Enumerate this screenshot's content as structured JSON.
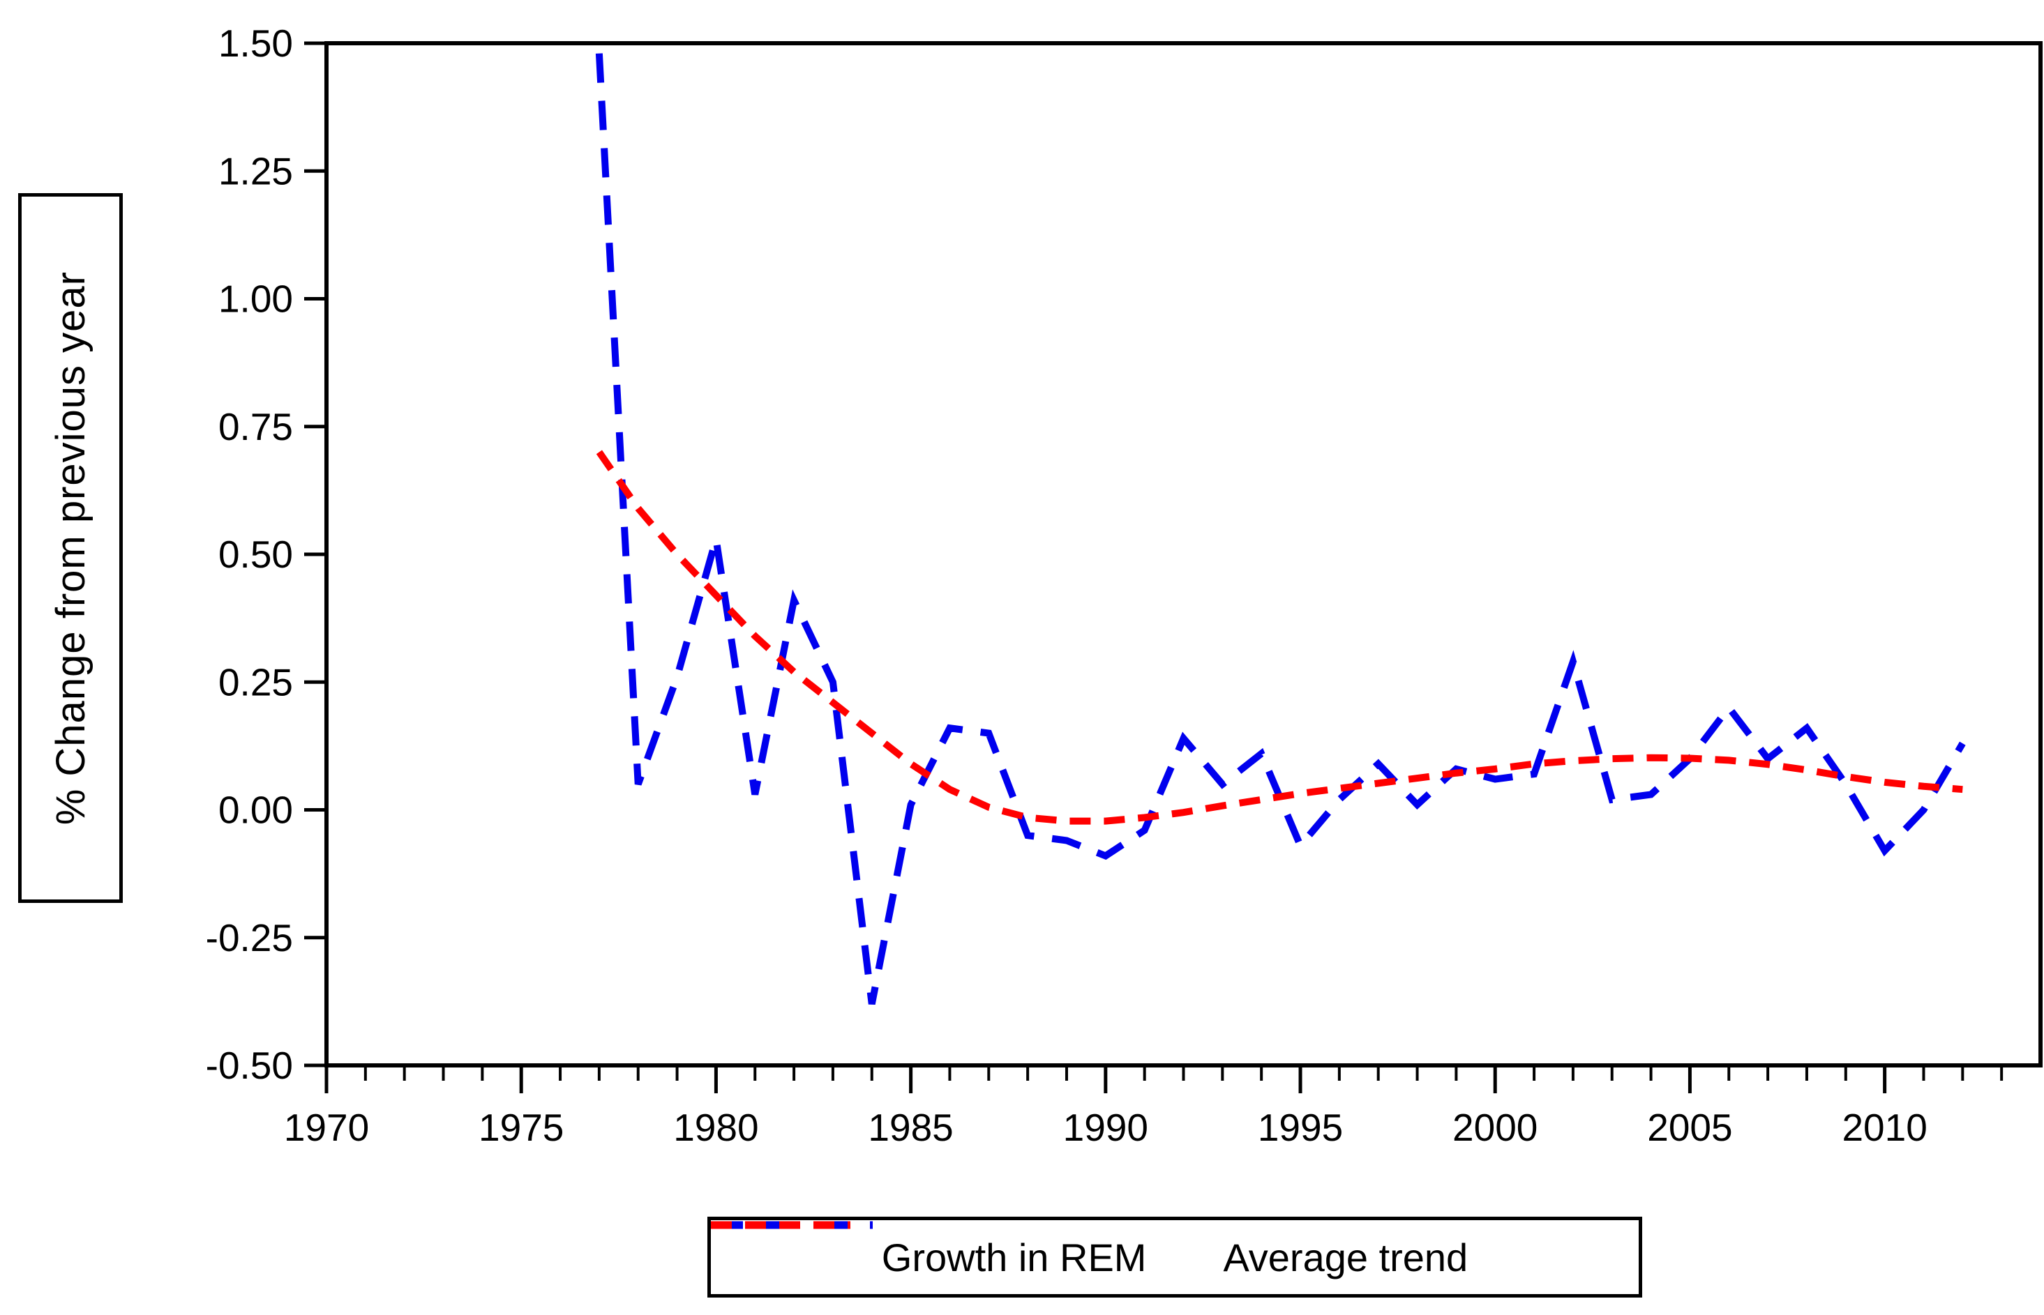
{
  "figure": {
    "background": "#ffffff",
    "axis_color": "#000000",
    "y_axis_title": "% Change from previous year"
  },
  "chart_data": {
    "type": "line",
    "title": "",
    "xlabel": "",
    "ylabel": "% Change from previous year",
    "grid": false,
    "legend_position": "bottom-center-boxed",
    "x_range": [
      1970,
      2014
    ],
    "ylim": [
      -0.5,
      1.5
    ],
    "y_ticks": [
      1.5,
      1.25,
      1.0,
      0.75,
      0.5,
      0.25,
      0.0,
      -0.25,
      -0.5
    ],
    "y_tick_labels": [
      "1.50",
      "1.25",
      "1.00",
      "0.75",
      "0.50",
      "0.25",
      "0.00",
      "-0.25",
      "-0.50"
    ],
    "x_major_ticks": [
      1970,
      1975,
      1980,
      1985,
      1990,
      1995,
      2000,
      2005,
      2010
    ],
    "x_minor_tick_step": 1,
    "x": [
      1977,
      1978,
      1979,
      1980,
      1981,
      1982,
      1983,
      1984,
      1985,
      1986,
      1987,
      1988,
      1989,
      1990,
      1991,
      1992,
      1993,
      1994,
      1995,
      1996,
      1997,
      1998,
      1999,
      2000,
      2001,
      2002,
      2003,
      2004,
      2005,
      2006,
      2007,
      2008,
      2009,
      2010,
      2011,
      2012
    ],
    "series": [
      {
        "name": "Growth in REM",
        "color": "#0000ee",
        "width": 10,
        "dash": [
          42,
          26
        ],
        "legend_dash": "46 30",
        "values": [
          1.48,
          0.05,
          0.26,
          0.53,
          0.03,
          0.41,
          0.25,
          -0.38,
          0.01,
          0.16,
          0.15,
          -0.05,
          -0.06,
          -0.09,
          -0.04,
          0.14,
          0.05,
          0.11,
          -0.07,
          0.02,
          0.09,
          0.01,
          0.08,
          0.06,
          0.07,
          0.29,
          0.02,
          0.03,
          0.1,
          0.2,
          0.1,
          0.16,
          0.05,
          -0.08,
          0.0,
          0.13
        ]
      },
      {
        "name": "Average trend",
        "color": "#ff0000",
        "width": 10,
        "dash": [
          30,
          19
        ],
        "legend_dash": "30 19",
        "values": [
          0.7,
          0.59,
          0.5,
          0.42,
          0.34,
          0.27,
          0.21,
          0.15,
          0.09,
          0.04,
          0.005,
          -0.015,
          -0.022,
          -0.022,
          -0.015,
          -0.005,
          0.008,
          0.02,
          0.032,
          0.042,
          0.052,
          0.062,
          0.072,
          0.08,
          0.09,
          0.096,
          0.1,
          0.102,
          0.101,
          0.097,
          0.089,
          0.078,
          0.065,
          0.054,
          0.046,
          0.04
        ]
      }
    ]
  }
}
